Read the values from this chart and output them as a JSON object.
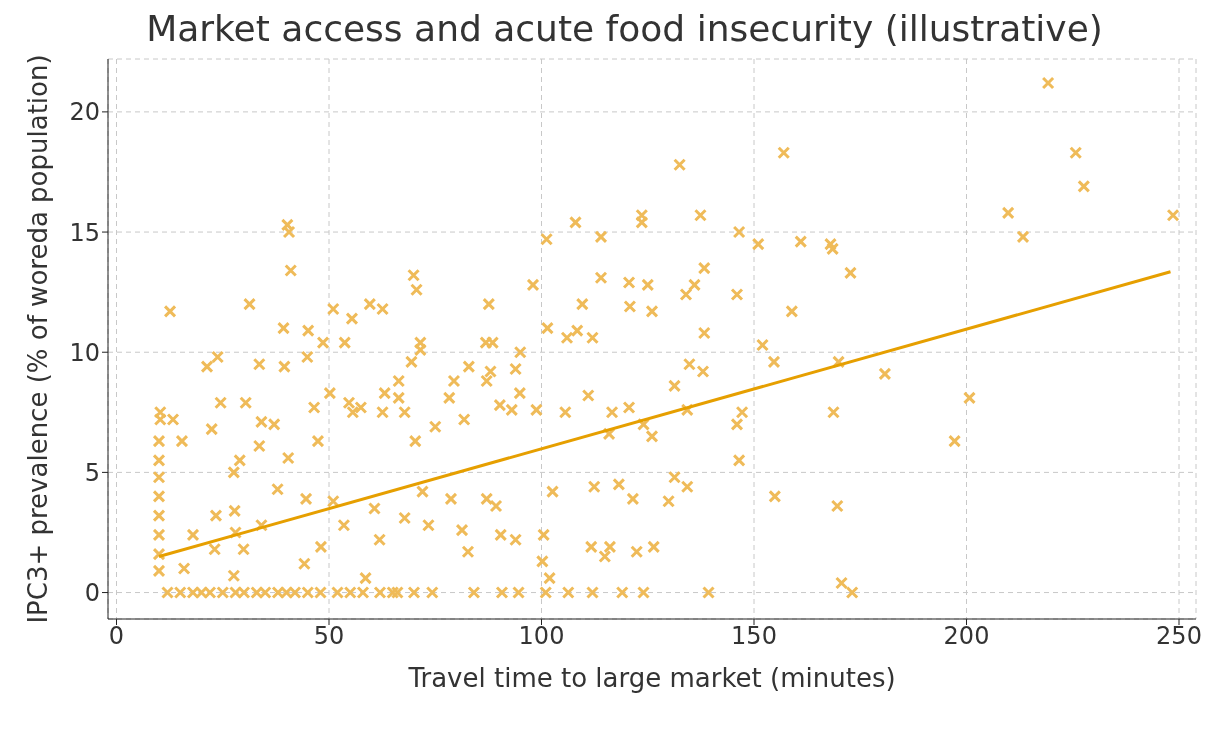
{
  "chart_data": {
    "type": "scatter",
    "title": "Market access and acute food insecurity (illustrative)",
    "xlabel": "Travel time to large market (minutes)",
    "ylabel": "IPC3+ prevalence (% of woreda population)",
    "xlim": [
      -2,
      254
    ],
    "ylim": [
      -1.1,
      22.2
    ],
    "xticks": [
      0,
      50,
      100,
      150,
      200,
      250
    ],
    "yticks": [
      0,
      5,
      10,
      15,
      20
    ],
    "grid": true,
    "legend": false,
    "series": [
      {
        "marker": "cross",
        "color": "#efbb59",
        "x": [
          219.2,
          157,
          132.5,
          225.7,
          227.6,
          209.8,
          213.3,
          248.6,
          123.6,
          123.6,
          108,
          114,
          101.2,
          137.4,
          146.5,
          40.2,
          40.6,
          161,
          168,
          168.5,
          151,
          146,
          134,
          136,
          125,
          120.6,
          98,
          114,
          69.9,
          41,
          172.7,
          138.3,
          12.6,
          31.3,
          51,
          55.4,
          59.6,
          62.6,
          70.6,
          87.6,
          109.6,
          120.8,
          126,
          158.9,
          152,
          39.3,
          45.1,
          101.4,
          108.4,
          138.3,
          112,
          106,
          86.9,
          88.5,
          71.5,
          71.5,
          69.4,
          48.6,
          53.7,
          44.9,
          23.8,
          21.3,
          33.6,
          39.5,
          82.9,
          95,
          93.9,
          88,
          138,
          134.8,
          154.7,
          169.9,
          180.8,
          200.7,
          131.3,
          111,
          94.9,
          90.2,
          93,
          98.8,
          78.3,
          79.4,
          87.1,
          66.4,
          50.2,
          46.5,
          54.7,
          63.1,
          66.4,
          30.4,
          24.5,
          10.3,
          10.3,
          10,
          10,
          10,
          10,
          10,
          10,
          10,
          10,
          13.3,
          15.4,
          22.4,
          34.1,
          37.1,
          27.6,
          29,
          33.6,
          40.4,
          47.4,
          55.6,
          57.5,
          62.6,
          67.8,
          75,
          70.3,
          81.8,
          105.6,
          116.6,
          120.6,
          124,
          115.9,
          126,
          147.2,
          168.7,
          134.3,
          197.2,
          146,
          146.5,
          131.3,
          134.3,
          112.4,
          118.2,
          154.9,
          169.6,
          129.9,
          121.5,
          102.6,
          87.1,
          89.3,
          78.7,
          72,
          60.7,
          51,
          53.5,
          44.6,
          34.1,
          28,
          18,
          23.4,
          27.8,
          37.9,
          67.8,
          73.4,
          81.3,
          90.4,
          93.9,
          100.5,
          82.7,
          61.9,
          48.1,
          44.2,
          29.9,
          23.1,
          15.9,
          27.6,
          100.2,
          101.9,
          111.7,
          116.1,
          122.4,
          126.4,
          114.9,
          58.6,
          170.6,
          173.1,
          139.3,
          124,
          112,
          101,
          94.6,
          84.1,
          74.3,
          66.1,
          106.3,
          119,
          90.7,
          12,
          15,
          18,
          20,
          22,
          25,
          28,
          30,
          33,
          35,
          38,
          40,
          42,
          45,
          48,
          52,
          55,
          58,
          62,
          65,
          70
        ],
        "values": [
          21.2,
          18.3,
          17.8,
          18.3,
          16.9,
          15.8,
          14.8,
          15.7,
          15.7,
          15.4,
          15.4,
          14.8,
          14.7,
          15.7,
          15,
          15.3,
          15,
          14.6,
          14.5,
          14.3,
          14.5,
          12.4,
          12.4,
          12.8,
          12.8,
          12.9,
          12.8,
          13.1,
          13.2,
          13.4,
          13.3,
          13.5,
          11.7,
          12,
          11.8,
          11.4,
          12,
          11.8,
          12.6,
          12,
          12,
          11.9,
          11.7,
          11.7,
          10.3,
          11,
          10.9,
          11,
          10.9,
          10.8,
          10.6,
          10.6,
          10.4,
          10.4,
          10.4,
          10.1,
          9.6,
          10.4,
          10.4,
          9.8,
          9.8,
          9.4,
          9.5,
          9.4,
          9.4,
          10,
          9.3,
          9.2,
          9.2,
          9.5,
          9.6,
          9.6,
          9.1,
          8.1,
          8.6,
          8.2,
          8.3,
          7.8,
          7.6,
          7.6,
          8.1,
          8.8,
          8.8,
          8.8,
          8.3,
          7.7,
          7.9,
          8.3,
          8.1,
          7.9,
          7.9,
          7.5,
          7.2,
          6.3,
          5.5,
          4.8,
          4,
          3.2,
          2.4,
          1.6,
          0.9,
          7.2,
          6.3,
          6.8,
          7.1,
          7,
          5,
          5.5,
          6.1,
          5.6,
          6.3,
          7.5,
          7.7,
          7.5,
          7.5,
          6.9,
          6.3,
          7.2,
          7.5,
          7.5,
          7.7,
          7,
          6.6,
          6.5,
          7.5,
          7.5,
          7.6,
          6.3,
          7,
          5.5,
          4.8,
          4.4,
          4.4,
          4.5,
          4,
          3.6,
          3.8,
          3.9,
          4.2,
          3.9,
          3.6,
          3.9,
          4.2,
          3.5,
          3.8,
          2.8,
          3.9,
          2.8,
          2.5,
          2.4,
          3.2,
          3.4,
          4.3,
          3.1,
          2.8,
          2.6,
          2.4,
          2.2,
          2.4,
          1.7,
          2.2,
          1.9,
          1.2,
          1.8,
          1.8,
          1,
          0.7,
          1.3,
          0.6,
          1.9,
          1.9,
          1.7,
          1.9,
          1.5,
          0.6,
          0.4,
          0,
          0,
          0,
          0,
          0,
          0,
          0,
          0,
          0,
          0,
          0,
          0,
          0,
          0,
          0,
          0,
          0,
          0,
          0,
          0,
          0,
          0,
          0,
          0,
          0,
          0,
          0,
          0,
          0,
          0,
          0,
          0,
          0
        ]
      },
      {
        "type": "line",
        "marker": "none",
        "color": "#e69f00",
        "x": [
          10,
          248
        ],
        "values": [
          1.5,
          13.35
        ]
      }
    ]
  }
}
